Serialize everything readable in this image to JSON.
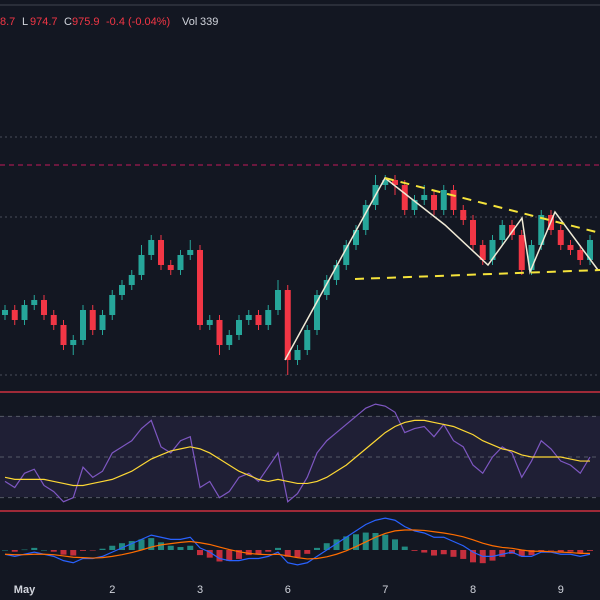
{
  "header": {
    "high": "8.7",
    "low_label": "L",
    "low": "974.7",
    "close_label": "C",
    "close": "975.9",
    "change": "-0.4 (-0.04%)",
    "vol_label": "Vol",
    "vol": "339"
  },
  "chart_data": [
    {
      "type": "candlestick",
      "up_color": "#26a69a",
      "down_color": "#f23645",
      "categories": [
        null,
        null,
        "May",
        null,
        null,
        null,
        null,
        null,
        null,
        null,
        null,
        "2",
        null,
        null,
        null,
        null,
        null,
        null,
        null,
        null,
        "3",
        null,
        null,
        null,
        null,
        null,
        null,
        null,
        null,
        "6",
        null,
        null,
        null,
        null,
        null,
        null,
        null,
        null,
        null,
        "7",
        null,
        null,
        null,
        null,
        null,
        null,
        null,
        null,
        "8",
        null,
        null,
        null,
        null,
        null,
        null,
        null,
        null,
        "9",
        null,
        null,
        null
      ],
      "open": [
        963,
        964,
        962,
        965,
        966,
        963,
        961,
        957,
        958,
        964,
        960,
        963,
        967,
        969,
        971,
        975,
        978,
        973,
        972,
        975,
        976,
        961,
        962,
        957,
        959,
        962,
        963,
        961,
        964,
        968,
        954,
        956,
        960,
        967,
        970,
        973,
        977,
        980,
        985,
        989,
        990,
        989,
        984,
        986,
        987,
        984,
        988,
        984,
        982,
        977,
        974,
        978,
        981,
        979,
        972,
        977,
        983,
        980,
        977,
        976,
        974
      ],
      "high": [
        965,
        965,
        966,
        967,
        967,
        964,
        962,
        959,
        965,
        965,
        964,
        968,
        970,
        972,
        977,
        979,
        979,
        974,
        976,
        978,
        977,
        963,
        963,
        960,
        963,
        964,
        964,
        965,
        970,
        969,
        957,
        961,
        968,
        971,
        974,
        978,
        981,
        986,
        991,
        991,
        991,
        990,
        987,
        989,
        988,
        989,
        989,
        985,
        983,
        978,
        979,
        982,
        982,
        980,
        978,
        984,
        984,
        981,
        978,
        977,
        979
      ],
      "low": [
        962,
        961,
        961,
        964,
        962,
        960,
        956,
        955,
        957,
        959,
        959,
        962,
        966,
        968,
        970,
        974,
        972,
        971,
        971,
        974,
        960,
        960,
        955,
        956,
        958,
        961,
        960,
        960,
        963,
        951,
        953,
        955,
        959,
        966,
        969,
        972,
        976,
        979,
        984,
        988,
        987,
        983,
        983,
        985,
        983,
        983,
        983,
        981,
        976,
        973,
        973,
        977,
        978,
        971,
        971,
        976,
        979,
        976,
        975,
        973,
        973
      ],
      "close": [
        964,
        962,
        965,
        966,
        963,
        961,
        957,
        958,
        964,
        960,
        963,
        967,
        969,
        971,
        975,
        978,
        973,
        972,
        975,
        976,
        961,
        962,
        957,
        959,
        962,
        963,
        961,
        964,
        968,
        954,
        956,
        960,
        967,
        970,
        973,
        977,
        980,
        985,
        989,
        990,
        989,
        984,
        986,
        987,
        984,
        988,
        984,
        982,
        977,
        974,
        978,
        981,
        979,
        972,
        977,
        983,
        980,
        977,
        976,
        974,
        978
      ],
      "ylim": [
        950,
        1000
      ],
      "levels": [
        998.6,
        993,
        982.6,
        951
      ]
    },
    {
      "type": "line",
      "ylim": [
        20,
        80
      ],
      "levels": [
        70,
        50,
        30
      ],
      "series": [
        {
          "color": "#7e57c2",
          "values": [
            38,
            35,
            42,
            44,
            36,
            33,
            28,
            30,
            45,
            40,
            43,
            52,
            55,
            58,
            64,
            68,
            55,
            52,
            58,
            60,
            35,
            38,
            30,
            33,
            40,
            42,
            38,
            45,
            52,
            28,
            32,
            40,
            52,
            58,
            62,
            66,
            70,
            74,
            76,
            75,
            72,
            62,
            64,
            65,
            60,
            66,
            58,
            55,
            46,
            42,
            50,
            55,
            52,
            40,
            48,
            58,
            54,
            48,
            46,
            42,
            50
          ]
        },
        {
          "color": "#fdd835",
          "values": [
            40,
            39,
            39,
            39,
            39,
            38,
            37,
            36,
            36,
            37,
            38,
            39,
            41,
            43,
            46,
            49,
            51,
            53,
            54,
            55,
            54,
            52,
            49,
            46,
            43,
            41,
            39,
            38,
            39,
            38,
            37,
            37,
            38,
            40,
            43,
            46,
            50,
            54,
            58,
            62,
            65,
            67,
            68,
            68,
            67,
            66,
            65,
            63,
            61,
            58,
            56,
            54,
            53,
            51,
            50,
            50,
            50,
            50,
            49,
            48,
            48
          ]
        }
      ]
    },
    {
      "type": "bar",
      "ylim": [
        -8,
        8
      ],
      "up_color": "#26a69a",
      "down_color": "#f23645",
      "values": [
        0,
        -0.4,
        0.1,
        0.5,
        0,
        -0.4,
        -1.1,
        -1.3,
        -0.2,
        -0.1,
        0.3,
        1,
        1.6,
        2.1,
        2.5,
        2.8,
        1.8,
        1,
        0.7,
        1,
        -1.2,
        -1.8,
        -2.7,
        -2.6,
        -2.1,
        -1.2,
        -1,
        -0.4,
        0.5,
        -1.6,
        -1.7,
        -0.9,
        0.5,
        1.6,
        2.5,
        3.2,
        3.7,
        4.1,
        4,
        3.6,
        2.5,
        0.8,
        -0.2,
        -0.6,
        -1.3,
        -1,
        -1.6,
        -2.1,
        -2.9,
        -3.1,
        -2.5,
        -1.6,
        -0.9,
        -1.5,
        -1.2,
        -0.2,
        -0.1,
        -0.5,
        -0.4,
        -0.7,
        -0.2
      ],
      "series": [
        {
          "color": "#2962ff",
          "values": [
            -1,
            -1.5,
            -1,
            -0.5,
            -1,
            -1.5,
            -2.5,
            -3,
            -2,
            -2,
            -1.5,
            -0.5,
            0.5,
            1.5,
            2.5,
            3.5,
            3,
            2.5,
            2.5,
            3,
            0.5,
            -0.5,
            -2,
            -2.5,
            -2.5,
            -2,
            -2,
            -1.5,
            -0.5,
            -3,
            -3.5,
            -3,
            -1.5,
            0,
            1.5,
            3,
            4.5,
            6,
            7,
            7.5,
            7,
            5.5,
            4.5,
            4,
            3,
            3,
            2,
            1,
            -0.5,
            -1.5,
            -1.5,
            -1,
            -0.5,
            -1.5,
            -1.5,
            -0.5,
            -0.5,
            -1,
            -1,
            -1.5,
            -1
          ]
        },
        {
          "color": "#ff6d00",
          "values": [
            -1,
            -1.1,
            -1.1,
            -1,
            -1,
            -1.1,
            -1.4,
            -1.7,
            -1.8,
            -1.9,
            -1.8,
            -1.5,
            -1.1,
            -0.6,
            0,
            0.7,
            1.2,
            1.5,
            1.8,
            2,
            1.7,
            1.3,
            0.7,
            0.1,
            -0.4,
            -0.8,
            -1,
            -1.1,
            -1,
            -1.4,
            -1.8,
            -2.1,
            -2,
            -1.6,
            -1,
            -0.2,
            0.8,
            1.9,
            3,
            3.9,
            4.5,
            4.7,
            4.7,
            4.6,
            4.3,
            4,
            3.6,
            3.1,
            2.4,
            1.6,
            1,
            0.6,
            0.4,
            0,
            -0.3,
            -0.3,
            -0.4,
            -0.5,
            -0.6,
            -0.8,
            -0.8
          ]
        }
      ]
    }
  ]
}
